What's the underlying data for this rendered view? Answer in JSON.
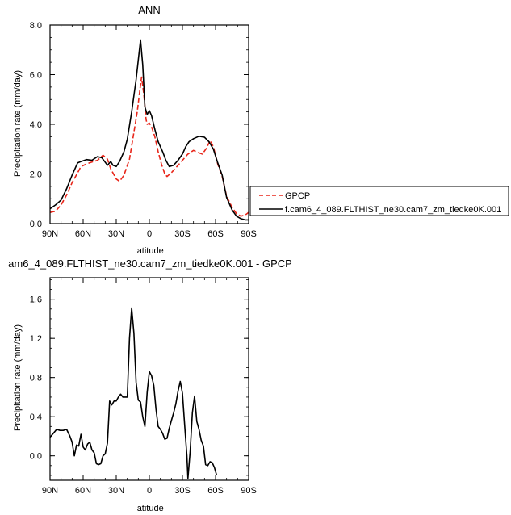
{
  "chart_data": [
    {
      "type": "line",
      "title": "ANN",
      "xlabel": "latitude",
      "ylabel": "Precipitation rate (mm/day)",
      "xlim": [
        -90,
        90
      ],
      "ylim": [
        0,
        8
      ],
      "x_ticks": [
        {
          "value": -90,
          "label": "90N"
        },
        {
          "value": -60,
          "label": "60N"
        },
        {
          "value": -30,
          "label": "30N"
        },
        {
          "value": 0,
          "label": "0"
        },
        {
          "value": 30,
          "label": "30S"
        },
        {
          "value": 60,
          "label": "60S"
        },
        {
          "value": 90,
          "label": "90S"
        }
      ],
      "y_ticks": [
        {
          "value": 0,
          "label": "0.0"
        },
        {
          "value": 2,
          "label": "2.0"
        },
        {
          "value": 4,
          "label": "4.0"
        },
        {
          "value": 6,
          "label": "6.0"
        },
        {
          "value": 8,
          "label": "8.0"
        }
      ],
      "legend_position": "right",
      "series": [
        {
          "name": "GPCP",
          "color": "#e8261a",
          "dash": "dashed",
          "points": [
            [
              -90,
              0.45
            ],
            [
              -85,
              0.5
            ],
            [
              -80,
              0.75
            ],
            [
              -75,
              1.15
            ],
            [
              -70,
              1.65
            ],
            [
              -65,
              2.05
            ],
            [
              -62,
              2.3
            ],
            [
              -57,
              2.4
            ],
            [
              -52,
              2.48
            ],
            [
              -47,
              2.55
            ],
            [
              -42,
              2.75
            ],
            [
              -38,
              2.6
            ],
            [
              -35,
              2.2
            ],
            [
              -30,
              1.8
            ],
            [
              -27,
              1.7
            ],
            [
              -23,
              1.95
            ],
            [
              -18,
              2.6
            ],
            [
              -15,
              3.4
            ],
            [
              -11,
              4.5
            ],
            [
              -8,
              5.6
            ],
            [
              -7,
              5.9
            ],
            [
              -5,
              5.2
            ],
            [
              -3,
              4.2
            ],
            [
              -2,
              4.0
            ],
            [
              0,
              4.05
            ],
            [
              2,
              3.9
            ],
            [
              5,
              3.5
            ],
            [
              8,
              2.9
            ],
            [
              11,
              2.4
            ],
            [
              14,
              2.0
            ],
            [
              16,
              1.9
            ],
            [
              20,
              2.05
            ],
            [
              25,
              2.3
            ],
            [
              30,
              2.55
            ],
            [
              35,
              2.8
            ],
            [
              40,
              2.95
            ],
            [
              45,
              2.85
            ],
            [
              48,
              2.8
            ],
            [
              52,
              3.05
            ],
            [
              55,
              3.35
            ],
            [
              58,
              3.1
            ],
            [
              62,
              2.4
            ],
            [
              66,
              1.9
            ],
            [
              70,
              1.1
            ],
            [
              75,
              0.65
            ],
            [
              79,
              0.4
            ],
            [
              83,
              0.3
            ],
            [
              87,
              0.35
            ],
            [
              90,
              0.45
            ]
          ]
        },
        {
          "name": "f.cam6_4_089.FLTHIST_ne30.cam7_zm_tiedke0K.001",
          "color": "#000000",
          "dash": "solid",
          "points": [
            [
              -90,
              0.6
            ],
            [
              -85,
              0.75
            ],
            [
              -80,
              0.95
            ],
            [
              -75,
              1.4
            ],
            [
              -70,
              1.95
            ],
            [
              -65,
              2.45
            ],
            [
              -62,
              2.5
            ],
            [
              -57,
              2.58
            ],
            [
              -52,
              2.55
            ],
            [
              -47,
              2.7
            ],
            [
              -43,
              2.65
            ],
            [
              -38,
              2.35
            ],
            [
              -35,
              2.5
            ],
            [
              -33,
              2.35
            ],
            [
              -30,
              2.3
            ],
            [
              -27,
              2.5
            ],
            [
              -23,
              2.9
            ],
            [
              -20,
              3.4
            ],
            [
              -16,
              4.5
            ],
            [
              -12,
              5.8
            ],
            [
              -9,
              7.0
            ],
            [
              -8,
              7.4
            ],
            [
              -6,
              6.4
            ],
            [
              -4,
              4.7
            ],
            [
              -2,
              4.4
            ],
            [
              0,
              4.55
            ],
            [
              2,
              4.35
            ],
            [
              5,
              3.8
            ],
            [
              8,
              3.3
            ],
            [
              12,
              2.9
            ],
            [
              15,
              2.55
            ],
            [
              18,
              2.3
            ],
            [
              22,
              2.35
            ],
            [
              26,
              2.55
            ],
            [
              30,
              2.8
            ],
            [
              33,
              3.1
            ],
            [
              36,
              3.3
            ],
            [
              40,
              3.42
            ],
            [
              45,
              3.52
            ],
            [
              50,
              3.48
            ],
            [
              54,
              3.3
            ],
            [
              58,
              3.0
            ],
            [
              62,
              2.45
            ],
            [
              66,
              1.95
            ],
            [
              70,
              1.05
            ],
            [
              75,
              0.55
            ],
            [
              79,
              0.3
            ],
            [
              83,
              0.2
            ],
            [
              87,
              0.15
            ],
            [
              90,
              0.15
            ]
          ]
        }
      ]
    },
    {
      "type": "line",
      "title": "am6_4_089.FLTHIST_ne30.cam7_zm_tiedke0K.001 - GPCP",
      "xlabel": "latitude",
      "ylabel": "Precipitation rate (mm/day)",
      "xlim": [
        -90,
        90
      ],
      "ylim": [
        -0.25,
        1.82
      ],
      "x_ticks": [
        {
          "value": -90,
          "label": "90N"
        },
        {
          "value": -60,
          "label": "60N"
        },
        {
          "value": -30,
          "label": "30N"
        },
        {
          "value": 0,
          "label": "0"
        },
        {
          "value": 30,
          "label": "30S"
        },
        {
          "value": 60,
          "label": "60S"
        },
        {
          "value": 90,
          "label": "90S"
        }
      ],
      "y_ticks": [
        {
          "value": 0.0,
          "label": "0.0"
        },
        {
          "value": 0.4,
          "label": "0.4"
        },
        {
          "value": 0.8,
          "label": "0.8"
        },
        {
          "value": 1.2,
          "label": "1.2"
        },
        {
          "value": 1.6,
          "label": "1.6"
        }
      ],
      "series": [
        {
          "name": "",
          "color": "#000000",
          "dash": "solid",
          "points": [
            [
              -90,
              0.19
            ],
            [
              -87,
              0.23
            ],
            [
              -84,
              0.27
            ],
            [
              -81,
              0.26
            ],
            [
              -78,
              0.26
            ],
            [
              -75,
              0.27
            ],
            [
              -72,
              0.2
            ],
            [
              -70,
              0.14
            ],
            [
              -68,
              0.0
            ],
            [
              -66,
              0.11
            ],
            [
              -64,
              0.1
            ],
            [
              -62,
              0.22
            ],
            [
              -60,
              0.09
            ],
            [
              -58,
              0.06
            ],
            [
              -56,
              0.12
            ],
            [
              -54,
              0.14
            ],
            [
              -52,
              0.06
            ],
            [
              -50,
              0.03
            ],
            [
              -48,
              -0.08
            ],
            [
              -46,
              -0.09
            ],
            [
              -44,
              -0.08
            ],
            [
              -42,
              0.0
            ],
            [
              -40,
              0.02
            ],
            [
              -38,
              0.13
            ],
            [
              -36,
              0.56
            ],
            [
              -34,
              0.52
            ],
            [
              -32,
              0.56
            ],
            [
              -30,
              0.56
            ],
            [
              -28,
              0.6
            ],
            [
              -26,
              0.63
            ],
            [
              -24,
              0.6
            ],
            [
              -22,
              0.6
            ],
            [
              -20,
              0.6
            ],
            [
              -18,
              1.2
            ],
            [
              -16,
              1.51
            ],
            [
              -14,
              1.25
            ],
            [
              -12,
              0.75
            ],
            [
              -10,
              0.57
            ],
            [
              -8,
              0.55
            ],
            [
              -6,
              0.4
            ],
            [
              -4,
              0.3
            ],
            [
              -2,
              0.65
            ],
            [
              0,
              0.86
            ],
            [
              2,
              0.82
            ],
            [
              4,
              0.72
            ],
            [
              6,
              0.48
            ],
            [
              8,
              0.3
            ],
            [
              10,
              0.27
            ],
            [
              12,
              0.23
            ],
            [
              14,
              0.17
            ],
            [
              16,
              0.18
            ],
            [
              18,
              0.28
            ],
            [
              20,
              0.36
            ],
            [
              22,
              0.44
            ],
            [
              24,
              0.53
            ],
            [
              26,
              0.66
            ],
            [
              28,
              0.76
            ],
            [
              30,
              0.64
            ],
            [
              32,
              0.32
            ],
            [
              34,
              0.0
            ],
            [
              35,
              -0.23
            ],
            [
              37,
              0.05
            ],
            [
              39,
              0.44
            ],
            [
              41,
              0.61
            ],
            [
              43,
              0.35
            ],
            [
              45,
              0.27
            ],
            [
              47,
              0.16
            ],
            [
              49,
              0.1
            ],
            [
              51,
              -0.09
            ],
            [
              53,
              -0.1
            ],
            [
              55,
              -0.06
            ],
            [
              57,
              -0.07
            ],
            [
              59,
              -0.12
            ],
            [
              61,
              -0.2
            ]
          ]
        }
      ]
    }
  ],
  "legend": {
    "entries": [
      {
        "label": "GPCP"
      },
      {
        "label": "f.cam6_4_089.FLTHIST_ne30.cam7_zm_tiedke0K.001"
      }
    ]
  }
}
